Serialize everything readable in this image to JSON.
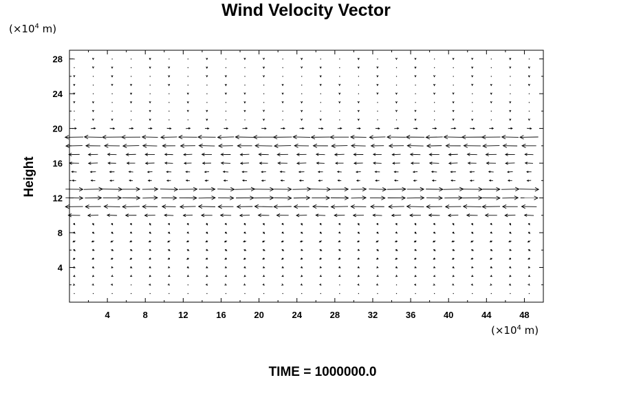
{
  "chart_data": {
    "type": "vector-field",
    "title": "Wind Velocity Vector",
    "ylabel": "Height",
    "y_unit": {
      "prefix": "(×10",
      "exponent": "4",
      "suffix": " m)"
    },
    "x_unit": {
      "prefix": "(×10",
      "exponent": "4",
      "suffix": " m)"
    },
    "footer": "TIME = 1000000.0",
    "xlim": [
      0,
      50
    ],
    "ylim": [
      0,
      29
    ],
    "x_ticks": [
      "4",
      "8",
      "12",
      "16",
      "20",
      "24",
      "28",
      "32",
      "36",
      "40",
      "44",
      "48"
    ],
    "y_ticks": [
      "4",
      "8",
      "12",
      "16",
      "20",
      "24",
      "28"
    ],
    "grid": false,
    "grid_x": {
      "start": 0.5,
      "step": 2,
      "count": 25
    },
    "grid_y": {
      "start": 1,
      "step": 1,
      "count": 28
    },
    "bands": [
      {
        "y": 20,
        "u": 0.45,
        "w": 0
      },
      {
        "y": 19,
        "u": -1.9,
        "w": 0
      },
      {
        "y": 18,
        "u": -1.6,
        "w": 0
      },
      {
        "y": 17,
        "u": -1.0,
        "w": 0
      },
      {
        "y": 16,
        "u": -0.9,
        "w": 0
      },
      {
        "y": 15,
        "u": -0.5,
        "w": 0
      },
      {
        "y": 14,
        "u": -0.4,
        "w": 0
      },
      {
        "y": 13,
        "u": 1.9,
        "w": 0
      },
      {
        "y": 12,
        "u": 1.8,
        "w": 0
      },
      {
        "y": 11,
        "u": -1.7,
        "w": 0
      },
      {
        "y": 10,
        "u": -1.1,
        "w": 0
      },
      {
        "y": 9,
        "u": 0.1,
        "w": -0.25
      },
      {
        "y": 8,
        "u": 0.15,
        "w": -0.2
      },
      {
        "y": 7,
        "u": -0.25,
        "w": -0.15
      },
      {
        "y": 6,
        "u": 0.2,
        "w": -0.15
      },
      {
        "y": 5,
        "u": -0.2,
        "w": -0.12
      },
      {
        "y": 4,
        "u": 0.15,
        "w": -0.1
      },
      {
        "y": 3,
        "u": -0.12,
        "w": -0.1
      },
      {
        "y": 2,
        "u": 0.08,
        "w": -0.08
      },
      {
        "y": 1,
        "u": -0.05,
        "w": 0
      }
    ],
    "default_vector": {
      "u": 0,
      "w": -0.12
    }
  }
}
